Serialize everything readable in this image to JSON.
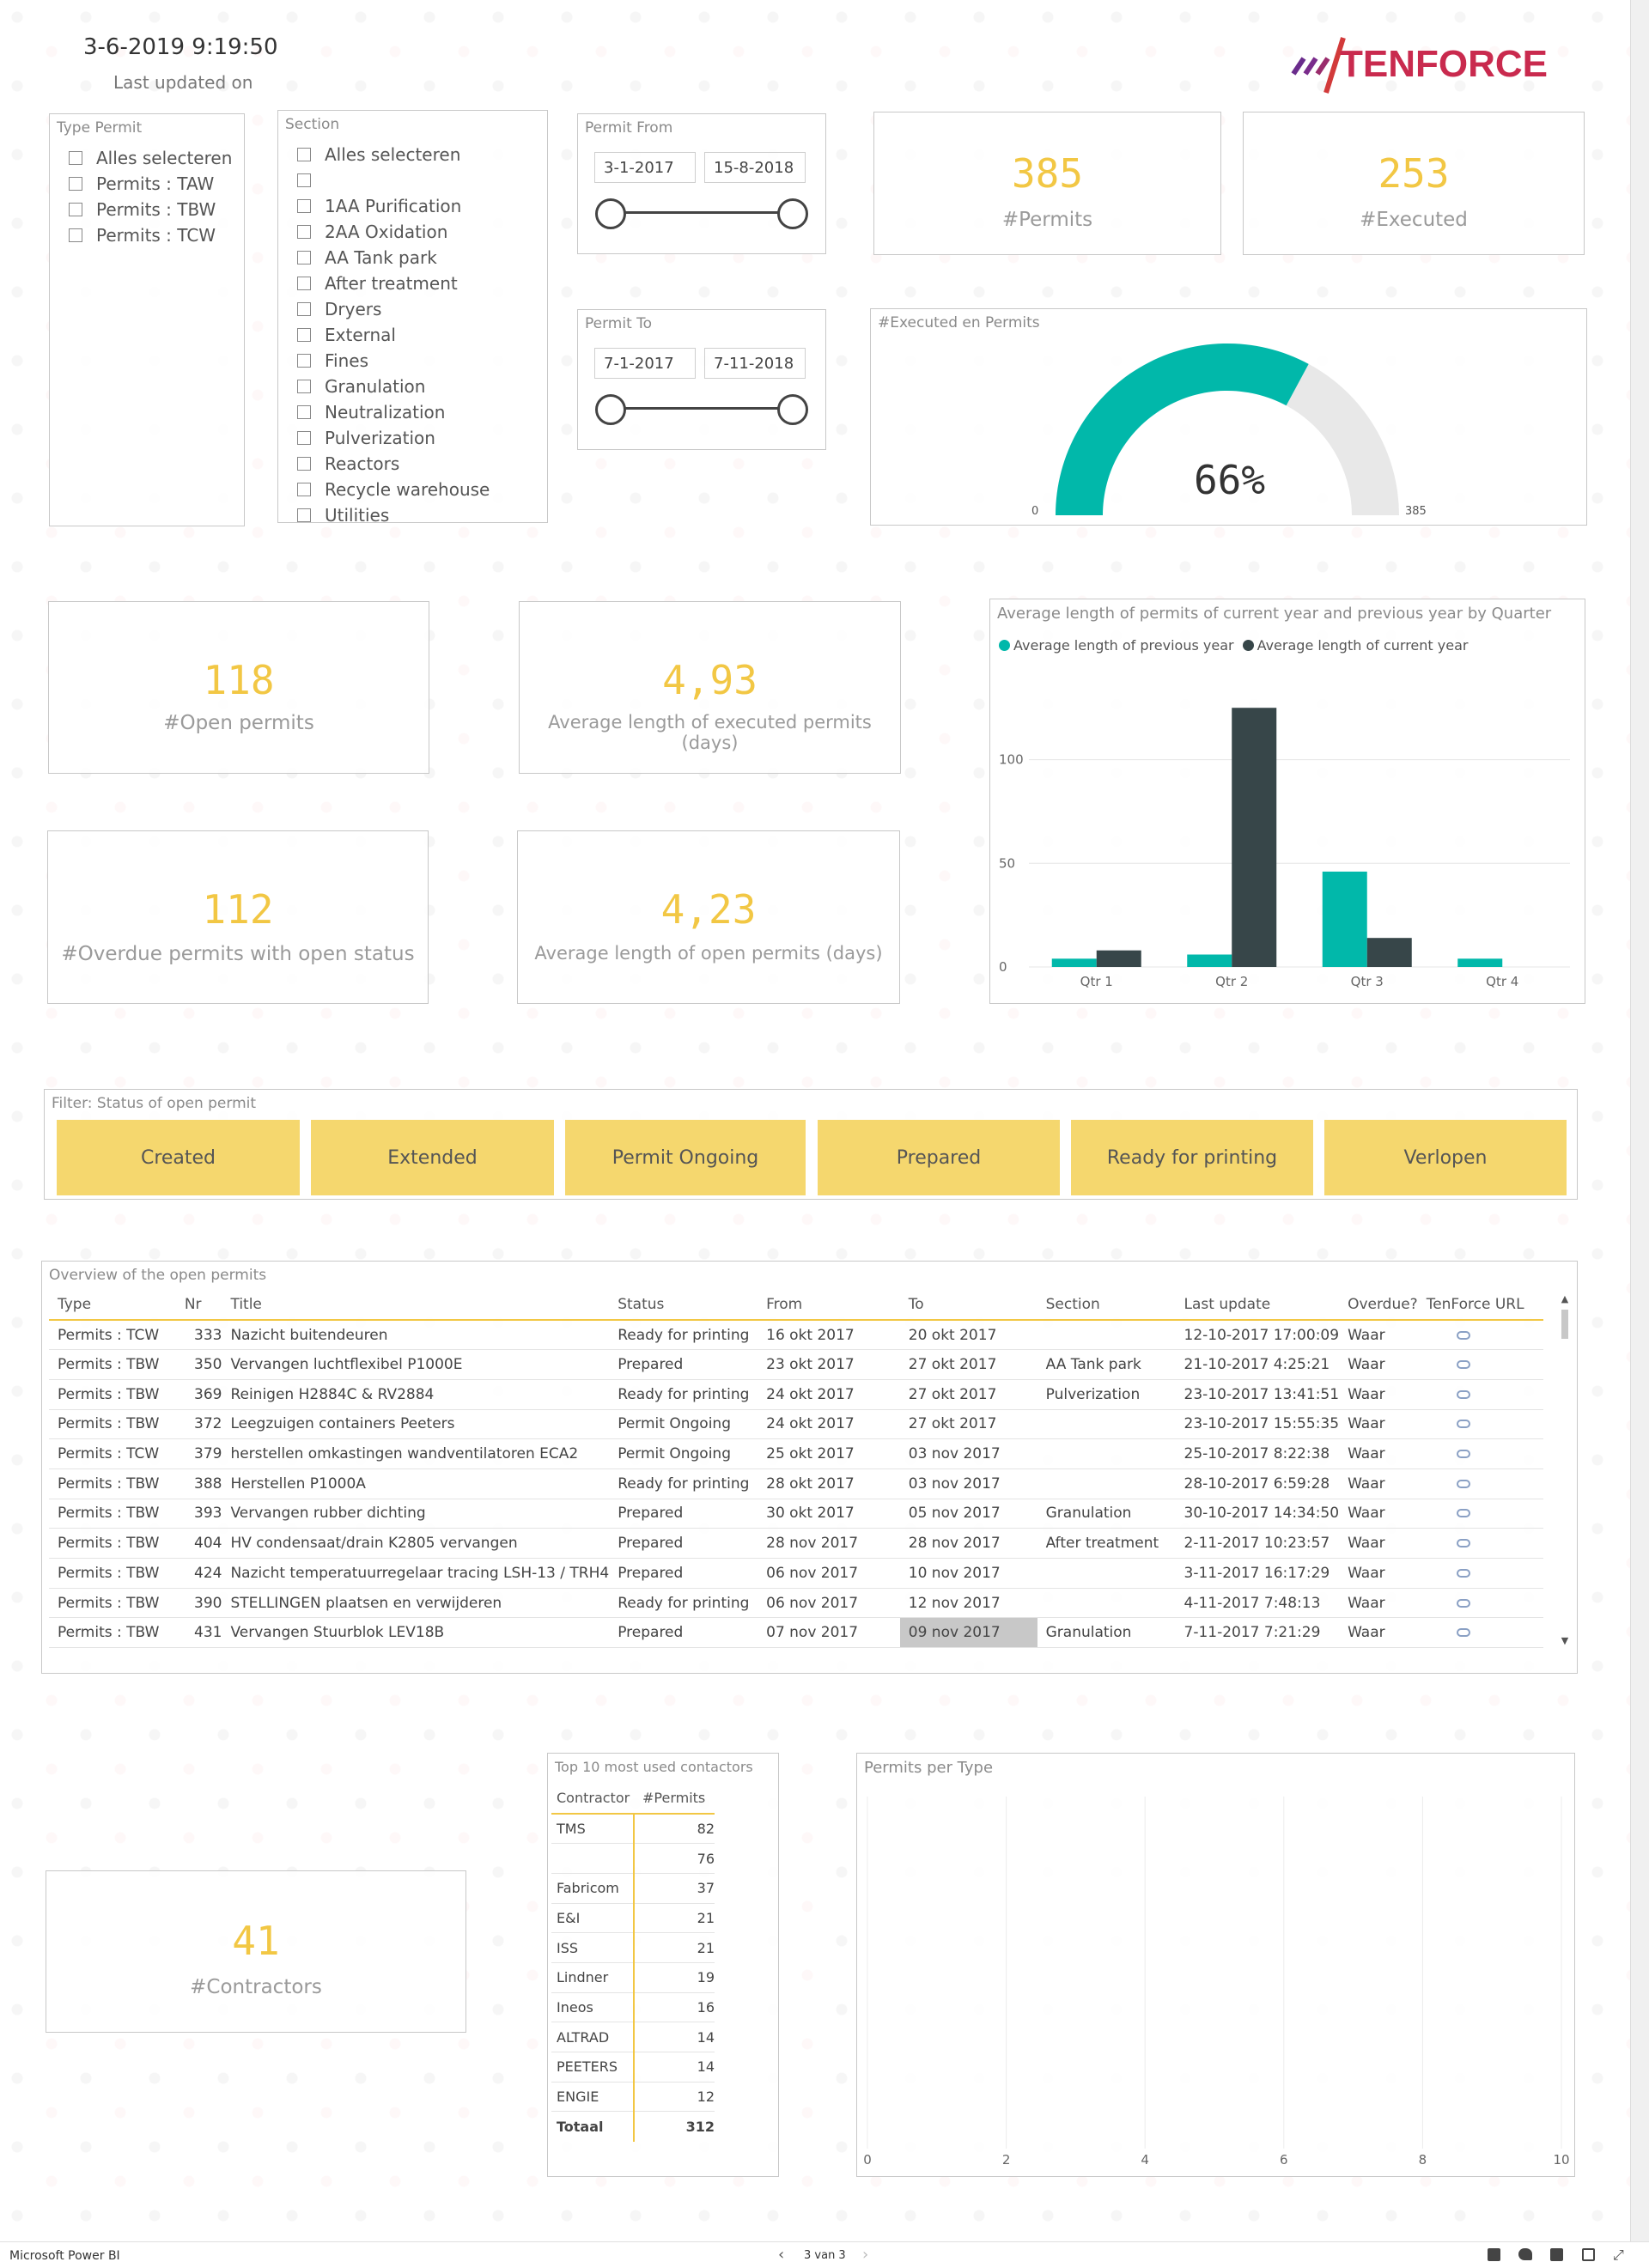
{
  "header": {
    "timestamp": "3-6-2019 9:19:50",
    "last_updated_label": "Last updated on",
    "logo_text": "TENFORCE"
  },
  "type_permit": {
    "title": "Type Permit",
    "items": [
      "Alles selecteren",
      "Permits : TAW",
      "Permits : TBW",
      "Permits : TCW"
    ]
  },
  "section": {
    "title": "Section",
    "items": [
      "Alles selecteren",
      "",
      "1AA Purification",
      "2AA Oxidation",
      "AA Tank park",
      "After treatment",
      "Dryers",
      "External",
      "Fines",
      "Granulation",
      "Neutralization",
      "Pulverization",
      "Reactors",
      "Recycle warehouse",
      "Utilities"
    ]
  },
  "permit_from": {
    "title": "Permit From",
    "start": "3-1-2017",
    "end": "15-8-2018"
  },
  "permit_to": {
    "title": "Permit To",
    "start": "7-1-2017",
    "end": "7-11-2018"
  },
  "kpis": {
    "permits": {
      "value": "385",
      "label": "#Permits"
    },
    "executed": {
      "value": "253",
      "label": "#Executed"
    },
    "open": {
      "value": "118",
      "label": "#Open permits"
    },
    "avg_exec": {
      "value": "4,93",
      "label": "Average length of executed permits (days)"
    },
    "overdue": {
      "value": "112",
      "label": "#Overdue permits with open status"
    },
    "avg_open": {
      "value": "4,23",
      "label": "Average length of open permits (days)"
    },
    "contractors": {
      "value": "41",
      "label": "#Contractors"
    }
  },
  "gauge": {
    "title": "#Executed en Permits",
    "value_label": "66%",
    "min_label": "0",
    "max_label": "385",
    "fraction": 0.657,
    "fill_color": "#01b8aa",
    "track_color": "#e8e8e8"
  },
  "chart_data": {
    "type": "bar",
    "title": "Average length of permits of current year and previous year by Quarter",
    "categories": [
      "Qtr 1",
      "Qtr 2",
      "Qtr 3",
      "Qtr 4"
    ],
    "series": [
      {
        "name": "Average length of previous year",
        "color": "#01b8aa",
        "values": [
          4,
          6,
          46,
          4
        ]
      },
      {
        "name": "Average length of current year",
        "color": "#374649",
        "values": [
          8,
          125,
          14,
          0
        ]
      }
    ],
    "yticks": [
      "0",
      "50",
      "100"
    ],
    "ylim": [
      0,
      140
    ]
  },
  "status_filter": {
    "title": "Filter: Status of open permit",
    "buttons": [
      "Created",
      "Extended",
      "Permit Ongoing",
      "Prepared",
      "Ready for printing",
      "Verlopen"
    ]
  },
  "open_permits": {
    "title": "Overview of the open permits",
    "columns": [
      "Type",
      "Nr",
      "Title",
      "Status",
      "From",
      "To",
      "Section",
      "Last update",
      "Overdue?",
      "TenForce URL"
    ],
    "rows": [
      [
        "Permits : TCW",
        "333",
        "Nazicht buitendeuren",
        "Ready for printing",
        "16 okt 2017",
        "20 okt 2017",
        "",
        "12-10-2017 17:00:09",
        "Waar"
      ],
      [
        "Permits : TBW",
        "350",
        "Vervangen luchtflexibel P1000E",
        "Prepared",
        "23 okt 2017",
        "27 okt 2017",
        "AA Tank park",
        "21-10-2017 4:25:21",
        "Waar"
      ],
      [
        "Permits : TBW",
        "369",
        "Reinigen H2884C & RV2884",
        "Ready for printing",
        "24 okt 2017",
        "27 okt 2017",
        "Pulverization",
        "23-10-2017 13:41:51",
        "Waar"
      ],
      [
        "Permits : TBW",
        "372",
        "Leegzuigen containers Peeters",
        "Permit Ongoing",
        "24 okt 2017",
        "27 okt 2017",
        "",
        "23-10-2017 15:55:35",
        "Waar"
      ],
      [
        "Permits : TCW",
        "379",
        "herstellen omkastingen wandventilatoren ECA2",
        "Permit Ongoing",
        "25 okt 2017",
        "03 nov 2017",
        "",
        "25-10-2017 8:22:38",
        "Waar"
      ],
      [
        "Permits : TBW",
        "388",
        "Herstellen P1000A",
        "Ready for printing",
        "28 okt 2017",
        "03 nov 2017",
        "",
        "28-10-2017 6:59:28",
        "Waar"
      ],
      [
        "Permits : TBW",
        "393",
        "Vervangen rubber dichting",
        "Prepared",
        "30 okt 2017",
        "05 nov 2017",
        "Granulation",
        "30-10-2017 14:34:50",
        "Waar"
      ],
      [
        "Permits : TBW",
        "404",
        "HV condensaat/drain K2805 vervangen",
        "Prepared",
        "28 nov 2017",
        "28 nov 2017",
        "After treatment",
        "2-11-2017 10:23:57",
        "Waar"
      ],
      [
        "Permits : TBW",
        "424",
        "Nazicht temperatuurregelaar tracing LSH-13 / TRH4",
        "Prepared",
        "06 nov 2017",
        "10 nov 2017",
        "",
        "3-11-2017 16:17:29",
        "Waar"
      ],
      [
        "Permits : TBW",
        "390",
        "STELLINGEN plaatsen en verwijderen",
        "Ready for printing",
        "06 nov 2017",
        "12 nov 2017",
        "",
        "4-11-2017 7:48:13",
        "Waar"
      ],
      [
        "Permits : TBW",
        "431",
        "Vervangen Stuurblok LEV18B",
        "Prepared",
        "07 nov 2017",
        "09 nov 2017",
        "Granulation",
        "7-11-2017 7:21:29",
        "Waar"
      ]
    ]
  },
  "contractors_table": {
    "title": "Top 10 most used contactors",
    "columns": [
      "Contractor",
      "#Permits"
    ],
    "rows": [
      [
        "TMS",
        "82"
      ],
      [
        "",
        "76"
      ],
      [
        "Fabricom",
        "37"
      ],
      [
        "E&I",
        "21"
      ],
      [
        "ISS",
        "21"
      ],
      [
        "Lindner",
        "19"
      ],
      [
        "Ineos",
        "16"
      ],
      [
        "ALTRAD",
        "14"
      ],
      [
        "PEETERS",
        "14"
      ],
      [
        "ENGIE",
        "12"
      ]
    ],
    "total_label": "Totaal",
    "total_value": "312"
  },
  "permits_per_type": {
    "title": "Permits per Type",
    "xticks": [
      "0",
      "2",
      "4",
      "6",
      "8",
      "10"
    ]
  },
  "taskbar": {
    "app_name": "Microsoft Power BI",
    "page_indicator": "3 van 3"
  }
}
